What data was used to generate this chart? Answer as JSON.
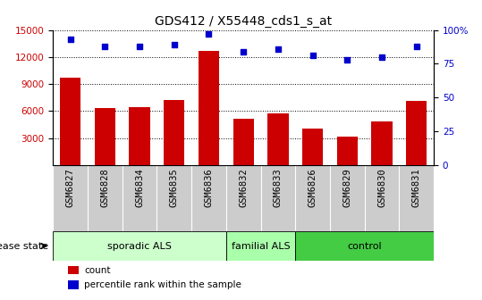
{
  "title": "GDS412 / X55448_cds1_s_at",
  "samples": [
    "GSM6827",
    "GSM6828",
    "GSM6834",
    "GSM6835",
    "GSM6836",
    "GSM6832",
    "GSM6833",
    "GSM6826",
    "GSM6829",
    "GSM6830",
    "GSM6831"
  ],
  "counts": [
    9700,
    6300,
    6400,
    7200,
    12700,
    5100,
    5700,
    4000,
    3200,
    4800,
    7100
  ],
  "percentile_ranks": [
    93,
    88,
    88,
    89,
    97,
    84,
    86,
    81,
    78,
    80,
    88
  ],
  "groups": [
    {
      "label": "sporadic ALS",
      "start": 0,
      "end": 5,
      "color": "#ccffcc"
    },
    {
      "label": "familial ALS",
      "start": 5,
      "end": 7,
      "color": "#aaffaa"
    },
    {
      "label": "control",
      "start": 7,
      "end": 11,
      "color": "#44cc44"
    }
  ],
  "ylim_left": [
    0,
    15000
  ],
  "yticks_left": [
    3000,
    6000,
    9000,
    12000,
    15000
  ],
  "ylim_right": [
    0,
    100
  ],
  "yticks_right": [
    0,
    25,
    50,
    75,
    100
  ],
  "bar_color": "#cc0000",
  "dot_color": "#0000cc",
  "left_tick_color": "#cc0000",
  "right_tick_color": "#0000cc",
  "tick_bg_color": "#cccccc",
  "bg_color": "#ffffff",
  "title_fontsize": 10,
  "tick_fontsize": 7.5,
  "legend_fontsize": 7.5,
  "group_fontsize": 8,
  "disease_state_fontsize": 8
}
